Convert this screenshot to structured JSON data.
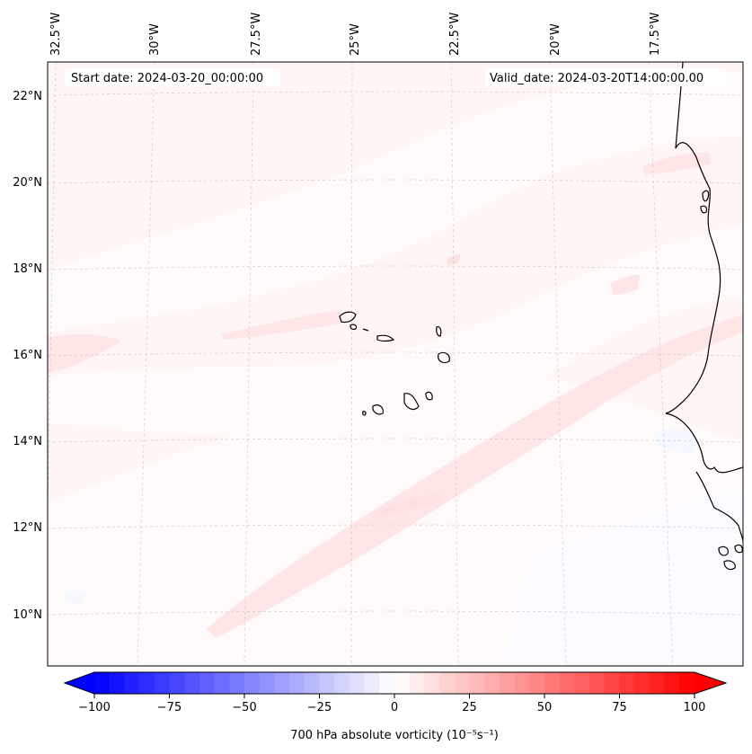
{
  "map": {
    "start_label": "Start date: 2024-03-20_00:00:00",
    "valid_label": "Valid_date: 2024-03-20T14:00:00.00",
    "lon_labels": [
      "32.5°W",
      "30°W",
      "27.5°W",
      "25°W",
      "22.5°W",
      "20°W",
      "17.5°W"
    ],
    "lat_labels": [
      "22°N",
      "20°N",
      "18°N",
      "16°N",
      "14°N",
      "12°N",
      "10°N"
    ],
    "field_colors": {
      "background": "#fff5f5",
      "light_positive": "#ffe6e6",
      "near_zero": "#fffafa",
      "slight_negative": "#f6f8ff"
    }
  },
  "colorbar": {
    "label": "700 hPa absolute vorticity (10⁻⁵s⁻¹)",
    "ticks": [
      "−100",
      "−75",
      "−50",
      "−25",
      "0",
      "25",
      "50",
      "75",
      "100"
    ],
    "min_color": "#0000ff",
    "mid_color": "#ffffff",
    "max_color": "#ff0000"
  }
}
